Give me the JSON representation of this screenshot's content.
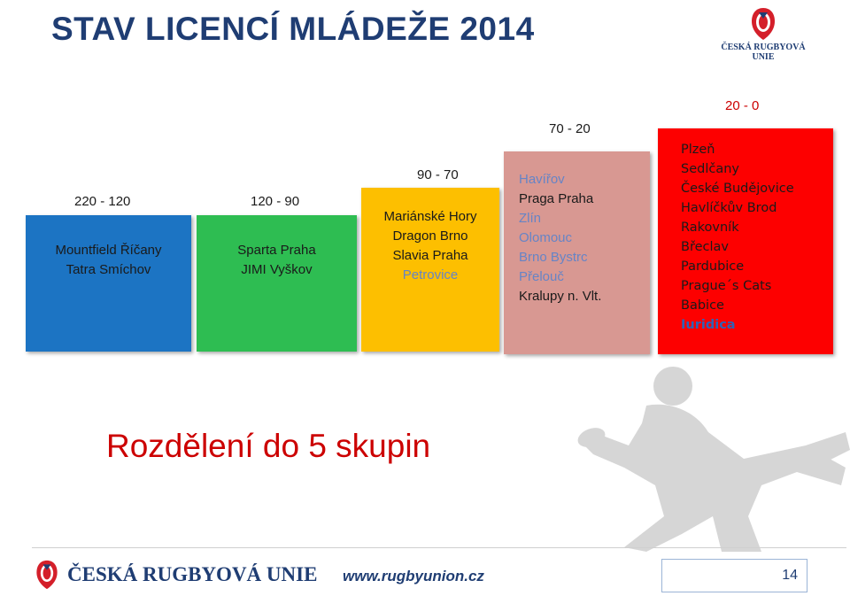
{
  "title": "STAV LICENCÍ MLÁDEŽE 2014",
  "logo": {
    "text_line1": "ČESKÁ RUGBYOVÁ",
    "text_line2": "UNIE"
  },
  "groups": [
    {
      "range": "220 - 120",
      "color": "#1c74c3",
      "teams": [
        {
          "name": "Mountfield Říčany",
          "style": "dark"
        },
        {
          "name": "Tatra Smíchov",
          "style": "dark"
        }
      ]
    },
    {
      "range": "120 - 90",
      "color": "#2ebd52",
      "teams": [
        {
          "name": "Sparta Praha",
          "style": "dark"
        },
        {
          "name": "JIMI Vyškov",
          "style": "dark"
        }
      ]
    },
    {
      "range": "90 - 70",
      "color": "#fdbf00",
      "teams": [
        {
          "name": "Mariánské Hory",
          "style": "dark"
        },
        {
          "name": "Dragon Brno",
          "style": "dark"
        },
        {
          "name": "Slavia Praha",
          "style": "dark"
        },
        {
          "name": "Petrovice",
          "style": "blue-light"
        }
      ]
    },
    {
      "range": "70 - 20",
      "color": "#d89892",
      "teams": [
        {
          "name": "Havířov",
          "style": "blue-light"
        },
        {
          "name": "Praga Praha",
          "style": "dark"
        },
        {
          "name": "Zlín",
          "style": "blue-light"
        },
        {
          "name": "Olomouc",
          "style": "blue-light"
        },
        {
          "name": "Brno Bystrc",
          "style": "blue-light"
        },
        {
          "name": "Přelouč",
          "style": "blue-light"
        },
        {
          "name": "Kralupy n. Vlt.",
          "style": "dark"
        }
      ]
    },
    {
      "range": "20 - 0",
      "color": "#fd0000",
      "teams": [
        {
          "name": "Plzeň",
          "style": "dark"
        },
        {
          "name": "Sedlčany",
          "style": "dark"
        },
        {
          "name": "České Budějovice",
          "style": "dark"
        },
        {
          "name": "Havlíčkův Brod",
          "style": "dark"
        },
        {
          "name": "Rakovník",
          "style": "dark"
        },
        {
          "name": "Břeclav",
          "style": "dark"
        },
        {
          "name": "Pardubice",
          "style": "dark"
        },
        {
          "name": "Prague´s Cats",
          "style": "dark"
        },
        {
          "name": "Babice",
          "style": "dark"
        },
        {
          "name": "Iuridica",
          "style": "blue"
        }
      ]
    }
  ],
  "subtitle": "Rozdělení do 5 skupin",
  "footer": {
    "logo_text": "ČESKÁ RUGBYOVÁ UNIE",
    "website": "www.rugbyunion.cz",
    "page_number": "14"
  },
  "colors": {
    "title": "#1f3d73",
    "subtitle": "#cc0000",
    "highlight_blue": "#2f62b6"
  },
  "icons": [
    "rugby-union-shield-logo",
    "rugby-player-silhouette"
  ]
}
